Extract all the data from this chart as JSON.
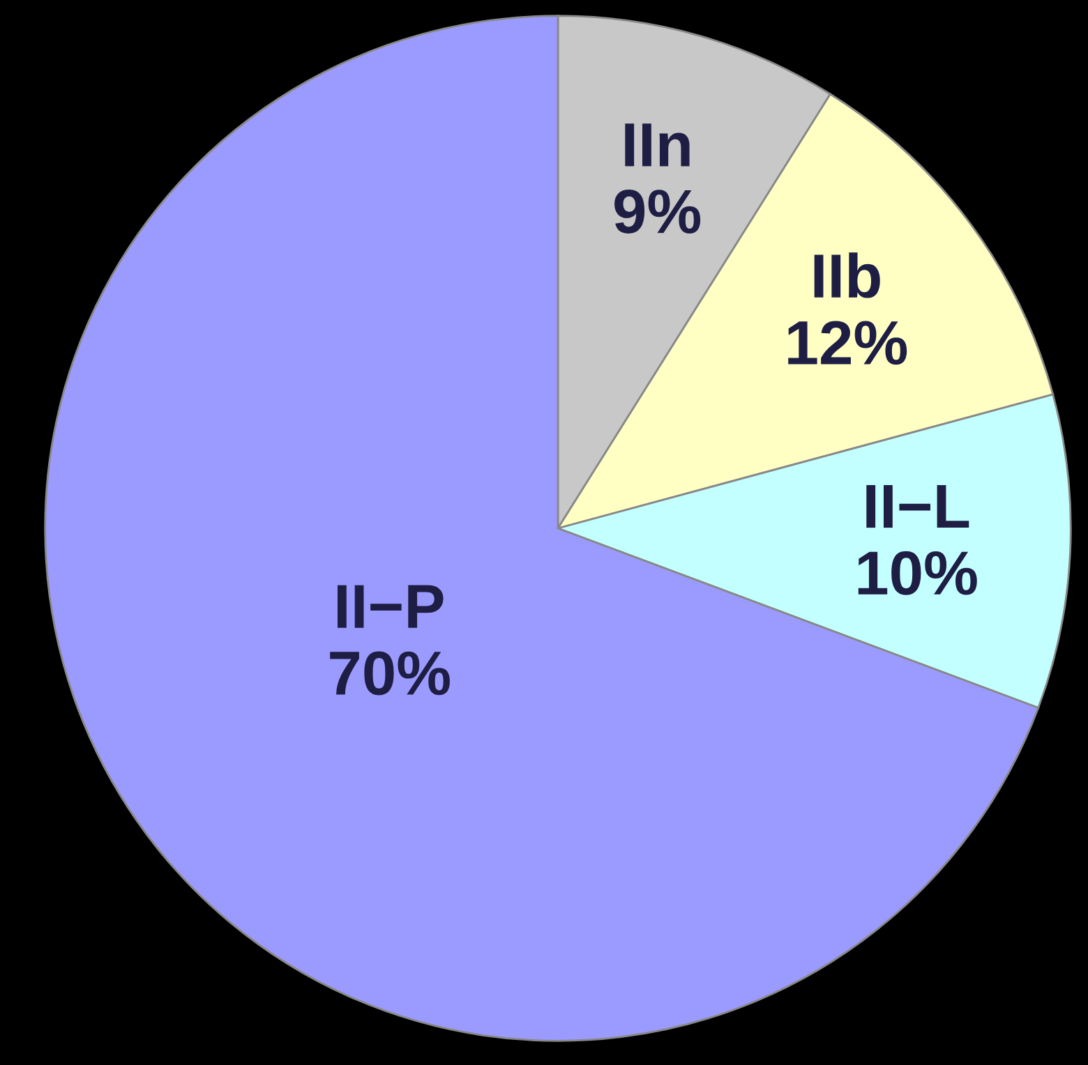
{
  "chart_data": {
    "type": "pie",
    "categories": [
      "IIn",
      "IIb",
      "II−L",
      "II−P"
    ],
    "values": [
      9,
      12,
      10,
      70
    ],
    "colors": [
      "#c8c8c8",
      "#ffffc4",
      "#c4ffff",
      "#9b9bff"
    ],
    "value_labels": [
      "9%",
      "12%",
      "10%",
      "70%"
    ]
  }
}
